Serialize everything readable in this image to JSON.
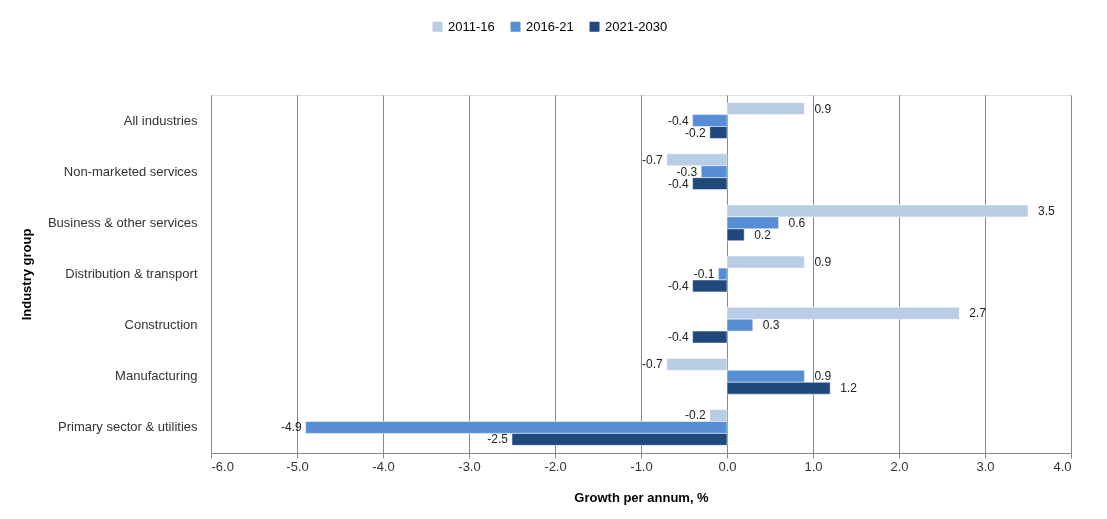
{
  "chart_data": {
    "type": "bar",
    "orientation": "horizontal",
    "xlabel": "Growth per annum, %",
    "ylabel": "Industry group",
    "categories": [
      "All industries",
      "Non-marketed services",
      "Business & other services",
      "Distribution & transport",
      "Construction",
      "Manufacturing",
      "Primary sector & utilities"
    ],
    "series": [
      {
        "name": "2011-16",
        "color": "#b9cde5",
        "values": [
          0.9,
          -0.7,
          3.5,
          0.9,
          2.7,
          -0.7,
          -0.2
        ]
      },
      {
        "name": "2016-21",
        "color": "#558ed5",
        "values": [
          -0.4,
          -0.3,
          0.6,
          -0.1,
          0.3,
          0.9,
          -4.9
        ]
      },
      {
        "name": "2021-2030",
        "color": "#1f497d",
        "values": [
          -0.2,
          -0.4,
          0.2,
          -0.4,
          -0.4,
          1.2,
          -2.5
        ]
      }
    ],
    "xlim": [
      -6,
      4
    ],
    "xticks": [
      {
        "value": -6,
        "label": "-6.0"
      },
      {
        "value": -5,
        "label": "-5.0"
      },
      {
        "value": -4,
        "label": "-4.0"
      },
      {
        "value": -3,
        "label": "-3.0"
      },
      {
        "value": -2,
        "label": "-2.0"
      },
      {
        "value": -1,
        "label": "-1.0"
      },
      {
        "value": 0,
        "label": "0.0"
      },
      {
        "value": 1,
        "label": "1.0"
      },
      {
        "value": 2,
        "label": "2.0"
      },
      {
        "value": 3,
        "label": "3.0"
      },
      {
        "value": 4,
        "label": "4.0"
      }
    ],
    "grid": "x",
    "legend": "top",
    "data_labels": true
  }
}
